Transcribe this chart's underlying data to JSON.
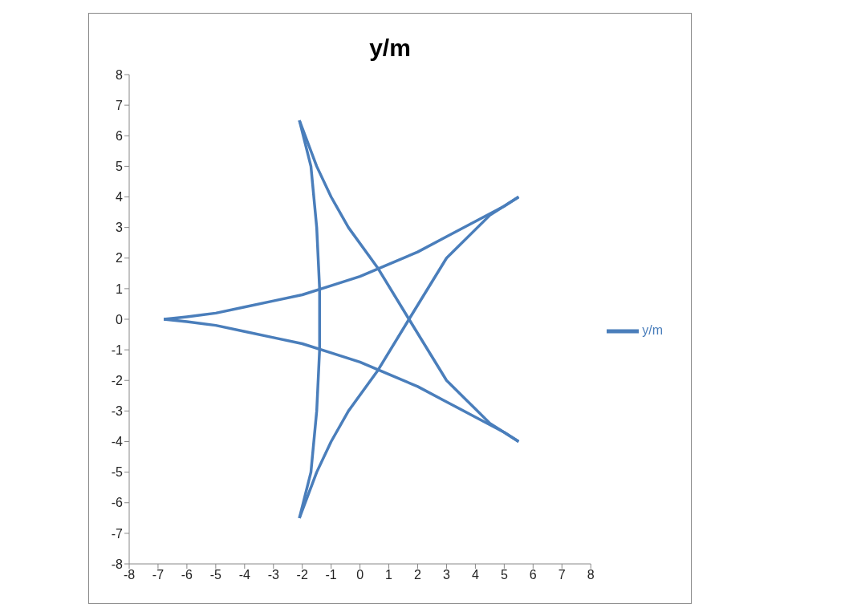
{
  "chart_data": {
    "type": "line",
    "title": "y/m",
    "legend": "right",
    "marker": "none",
    "line_style": "solid",
    "xlim": [
      -8,
      8
    ],
    "xticks": [
      -8,
      -7,
      -6,
      -5,
      -4,
      -3,
      -2,
      -1,
      0,
      1,
      2,
      3,
      4,
      5,
      6,
      7,
      8
    ],
    "ylim": [
      -8,
      8
    ],
    "yticks": [
      -8,
      -7,
      -6,
      -5,
      -4,
      -3,
      -2,
      -1,
      0,
      1,
      2,
      3,
      4,
      5,
      6,
      7,
      8
    ],
    "series": [
      {
        "name": "y/m",
        "color": "#4a7ebb",
        "x": [
          -6.8,
          -6,
          -5,
          -4,
          -3,
          -2,
          -1,
          0,
          1,
          2,
          3,
          4,
          5,
          5.5
        ],
        "values": [
          0,
          0.08,
          0.2,
          0.4,
          0.6,
          0.8,
          1.1,
          1.4,
          1.8,
          2.2,
          2.7,
          3.2,
          3.7,
          4
        ]
      },
      {
        "color": "#4a7ebb",
        "x": [
          5.5,
          4.5,
          3,
          1.7,
          0.6,
          -0.4,
          -1,
          -1.5,
          -2.1
        ],
        "values": [
          4,
          3.4,
          2,
          0,
          -1.7,
          -3,
          -4,
          -5,
          -6.5
        ]
      },
      {
        "color": "#4a7ebb",
        "x": [
          -2.1,
          -1.7,
          -1.5,
          -1.4,
          -1.4,
          -1.4,
          -1.5,
          -1.7,
          -2.1
        ],
        "values": [
          -6.5,
          -5,
          -3,
          -1,
          0,
          1,
          3,
          5,
          6.5
        ]
      },
      {
        "color": "#4a7ebb",
        "x": [
          -2.1,
          -1.5,
          -1,
          -0.4,
          0.6,
          1.7,
          3,
          4.5,
          5.5
        ],
        "values": [
          6.5,
          5,
          4,
          3,
          1.7,
          0,
          -2,
          -3.4,
          -4
        ]
      },
      {
        "color": "#4a7ebb",
        "x": [
          5.5,
          5,
          4,
          3,
          2,
          1,
          0,
          -1,
          -2,
          -3,
          -4,
          -5,
          -6,
          -6.8
        ],
        "values": [
          -4,
          -3.7,
          -3.2,
          -2.7,
          -2.2,
          -1.8,
          -1.4,
          -1.1,
          -0.8,
          -0.6,
          -0.4,
          -0.2,
          -0.08,
          0
        ]
      }
    ]
  }
}
